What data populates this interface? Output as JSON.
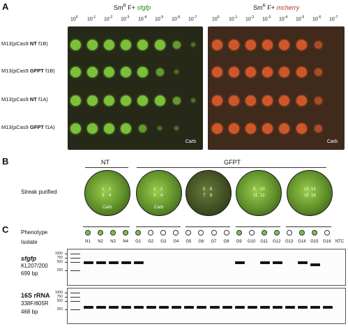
{
  "panel_a": {
    "letter": "A",
    "left_header": {
      "prefix": "Sm",
      "sup": "R",
      "middle": " F+ ",
      "gene": "sfgfp"
    },
    "right_header": {
      "prefix": "Sm",
      "sup": "R",
      "middle": " F+ ",
      "gene": "mcherry"
    },
    "dilutions": [
      "-0",
      "-1",
      "-2",
      "-3",
      "-4",
      "-5",
      "-6",
      "-7"
    ],
    "dilution_base": "10",
    "row_labels": [
      {
        "pre": "M13(pCas9 ",
        "bold": "NT",
        "post": " f1B)"
      },
      {
        "pre": "M13(pCas9 ",
        "bold": "GFPT",
        "post": " f1B)"
      },
      {
        "pre": "M13(pCas9 ",
        "bold": "NT",
        "post": " f1A)"
      },
      {
        "pre": "M13(pCas9 ",
        "bold": "GFPT",
        "post": " f1A)"
      }
    ],
    "plate_label": "Carb",
    "colors": {
      "gfp_plate": "#2a2c1c",
      "gfp_spot": "#7fc93a",
      "rfp_plate": "#4a2e1e",
      "rfp_spot": "#d65a2a"
    }
  },
  "panel_b": {
    "letter": "B",
    "group_nt": "NT",
    "group_gfpt": "GFPT",
    "row_label": "Streak purified",
    "plates": [
      {
        "nums": [
          "1",
          "2",
          "3",
          "4"
        ],
        "label": "Carb",
        "glow": true
      },
      {
        "nums": [
          "1",
          "2",
          "3",
          "4"
        ],
        "label": "Carb",
        "glow": true
      },
      {
        "nums": [
          "5",
          "6",
          "7",
          "8"
        ],
        "label": "",
        "glow": false
      },
      {
        "nums": [
          "9",
          "10",
          "11",
          "12"
        ],
        "label": "",
        "glow": true
      },
      {
        "nums": [
          "13",
          "14",
          "15",
          "16"
        ],
        "label": "",
        "glow": true
      }
    ]
  },
  "panel_c": {
    "letter": "C",
    "phenotype_label": "Phenotype",
    "isolate_label": "Isolate",
    "isolates": [
      "N1",
      "N2",
      "N3",
      "N4",
      "G1",
      "G2",
      "G3",
      "G4",
      "G5",
      "G6",
      "G7",
      "G8",
      "G9",
      "G10",
      "G11",
      "G12",
      "G13",
      "G14",
      "G15",
      "G16",
      "NTC"
    ],
    "phenotype_green": [
      true,
      true,
      true,
      true,
      true,
      false,
      false,
      false,
      false,
      false,
      false,
      false,
      true,
      false,
      true,
      true,
      false,
      true,
      true,
      false,
      false
    ],
    "gel1": {
      "gene": "sfgfp",
      "primers": "KL207/200",
      "size": "699 bp",
      "bands": [
        true,
        true,
        true,
        true,
        true,
        false,
        false,
        false,
        false,
        false,
        false,
        false,
        true,
        false,
        true,
        true,
        false,
        true,
        true,
        false,
        false
      ]
    },
    "gel2": {
      "gene": "16S rRNA",
      "primers": "338F/805R",
      "size": "468 bp",
      "bands": [
        true,
        true,
        true,
        true,
        true,
        true,
        true,
        true,
        true,
        true,
        true,
        true,
        true,
        true,
        true,
        true,
        true,
        true,
        true,
        true,
        false
      ]
    },
    "ladder_marks": [
      "1000",
      "750",
      "500",
      "250"
    ],
    "green_color": "#7cc243"
  }
}
